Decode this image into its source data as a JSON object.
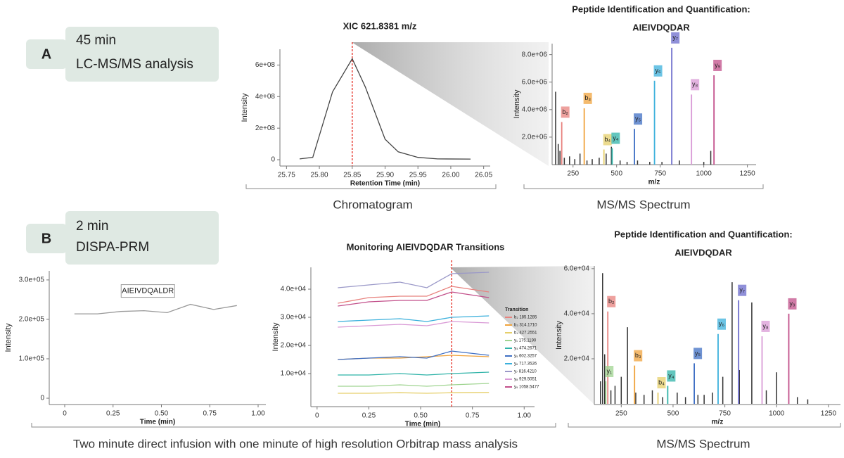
{
  "panels": [
    {
      "label": "A",
      "box": [
        "45 min",
        "LC-MS/MS analysis"
      ]
    },
    {
      "label": "B",
      "box": [
        "2 min",
        "DISPA-PRM"
      ]
    }
  ],
  "captions": [
    "Chromatogram",
    "MS/MS Spectrum",
    "Two minute direct infusion with one minute of high resolution Orbitrap mass analysis",
    "MS/MS Spectrum"
  ],
  "chart_data": [
    {
      "type": "line",
      "title": "XIC 621.8381 m/z",
      "x_label": "Retention Time (min)",
      "y_label": "Intensity",
      "color": "#444444",
      "x": [
        25.77,
        25.79,
        25.82,
        25.85,
        25.87,
        25.9,
        25.92,
        25.95,
        25.98,
        26.03
      ],
      "values": [
        5000000,
        15000000,
        430000000,
        640000000,
        460000000,
        130000000,
        50000000,
        15000000,
        5000000,
        4000000
      ],
      "marker_x": 25.85,
      "marker_color": "#e8453c",
      "xlim": [
        25.74,
        26.06
      ],
      "ylim": [
        -40000000,
        700000000
      ],
      "xticks": [
        25.75,
        {
          "value": 25.8,
          "label": "25.80"
        },
        25.85,
        {
          "value": 25.9,
          "label": "25.90"
        },
        25.95,
        {
          "value": 26.0,
          "label": "26.00"
        },
        26.05
      ],
      "yticks": [
        0,
        {
          "value": 200000000,
          "label": "2e+08"
        },
        {
          "value": 400000000,
          "label": "4e+08"
        },
        {
          "value": 600000000,
          "label": "6e+08"
        }
      ]
    },
    {
      "type": "spectrum",
      "title": "Peptide Identification and Quantification:",
      "subtitle": "AIEIVDQDAR",
      "x_label": "m/z",
      "y_label": "Intensity",
      "color": "#333333",
      "peaks": {
        "labels": [
          "b₂",
          "b₃",
          "b₄",
          "y₄",
          "y₅",
          "y₆",
          "y₇",
          "y₈",
          "y₉"
        ],
        "x": [
          185.1285,
          314.171,
          427.2551,
          474.2671,
          602.3257,
          717.3526,
          816.421,
          929.5051,
          1058.5477
        ],
        "values": [
          3100000,
          4100000,
          1100000,
          1200000,
          2600000,
          6100000,
          8500000,
          5100000,
          6500000
        ],
        "colors": [
          "#e8827e",
          "#f0a33c",
          "#e6cf6a",
          "#2fb3a8",
          "#3f6fc4",
          "#3bb0dc",
          "#6b6bcc",
          "#d99ad6",
          "#c24f8a"
        ]
      },
      "other_peaks": {
        "x": [
          150,
          165,
          175,
          200,
          230,
          260,
          290,
          330,
          360,
          400,
          440,
          470,
          520,
          560,
          620,
          690,
          760,
          860,
          1000,
          1040
        ],
        "values": [
          5300000,
          1500000,
          1000000,
          500000,
          600000,
          400000,
          800000,
          300000,
          400000,
          500000,
          800000,
          1300000,
          300000,
          200000,
          300000,
          200000,
          200000,
          300000,
          200000,
          1000000
        ]
      },
      "xlim": [
        130,
        1300
      ],
      "ylim": [
        0,
        8800000
      ],
      "xticks": [
        250,
        500,
        750,
        1000,
        1250
      ],
      "yticks": [
        {
          "value": 2000000,
          "label": "2.0e+06"
        },
        {
          "value": 4000000,
          "label": "4.0e+06"
        },
        {
          "value": 6000000,
          "label": "6.0e+06"
        },
        {
          "value": 8000000,
          "label": "8.0e+06"
        }
      ]
    },
    {
      "type": "line",
      "x_label": "Time (min)",
      "y_label": "Intensity",
      "color": "#999999",
      "annotation": "AIEIVDQALDR",
      "x": [
        0.05,
        0.17,
        0.29,
        0.41,
        0.53,
        0.65,
        0.77,
        0.89
      ],
      "values": [
        214000,
        214000,
        220000,
        222000,
        217000,
        238000,
        225000,
        235000
      ],
      "xlim": [
        -0.08,
        1.04
      ],
      "ylim": [
        -16000,
        323000
      ],
      "xticks": [
        0,
        0.25,
        {
          "value": 0.5,
          "label": "0.50"
        },
        0.75,
        {
          "value": 1,
          "label": "1.00"
        }
      ],
      "yticks": [
        0,
        {
          "value": 100000,
          "label": "1.0e+05"
        },
        {
          "value": 200000,
          "label": "2.0e+05"
        },
        {
          "value": 300000,
          "label": "3.0e+05"
        }
      ]
    },
    {
      "type": "line",
      "title": "Monitoring AIEIVDQDAR Transitions",
      "x_label": "Time (min)",
      "y_label": "Intensity",
      "legend_title": "Transition",
      "marker_x": 0.65,
      "marker_color": "#e8453c",
      "x": [
        0.1,
        0.25,
        0.4,
        0.53,
        0.65,
        0.83
      ],
      "series": [
        {
          "name": "b₂ 185.1285",
          "color": "#e8827e",
          "values": [
            35000,
            37000,
            37500,
            37500,
            41000,
            39000
          ]
        },
        {
          "name": "b₃ 314.1710",
          "color": "#f0a33c",
          "values": [
            15000,
            15500,
            15500,
            16000,
            16500,
            16000
          ]
        },
        {
          "name": "b₄ 427.2551",
          "color": "#e6cf6a",
          "values": [
            3000,
            3000,
            3200,
            3000,
            3200,
            3300
          ]
        },
        {
          "name": "y₁ 175.1190",
          "color": "#9fd490",
          "values": [
            5500,
            5500,
            6000,
            5500,
            6000,
            6500
          ]
        },
        {
          "name": "y₄ 474.2671",
          "color": "#2fb3a8",
          "values": [
            9500,
            9500,
            10000,
            9500,
            10000,
            10500
          ]
        },
        {
          "name": "y₅ 602.3257",
          "color": "#3f6fc4",
          "values": [
            15000,
            15500,
            16000,
            15500,
            18000,
            16500
          ]
        },
        {
          "name": "y₆ 717.3526",
          "color": "#3bb0dc",
          "values": [
            28500,
            29000,
            29500,
            28500,
            30000,
            30500
          ]
        },
        {
          "name": "y₇ 816.4210",
          "color": "#9a98c8",
          "values": [
            40500,
            41500,
            42500,
            40500,
            45500,
            46000
          ]
        },
        {
          "name": "y₈ 929.5051",
          "color": "#d99ad6",
          "values": [
            26500,
            27000,
            27500,
            27000,
            28500,
            28000
          ]
        },
        {
          "name": "y₉ 1058.5477",
          "color": "#c24f8a",
          "values": [
            34000,
            35500,
            36000,
            36000,
            39000,
            37000
          ]
        }
      ],
      "xlim": [
        -0.03,
        1.05
      ],
      "ylim": [
        -1750,
        47750
      ],
      "xticks": [
        0,
        0.25,
        {
          "value": 0.5,
          "label": "0.50"
        },
        0.75,
        {
          "value": 1,
          "label": "1.00"
        }
      ],
      "yticks": [
        {
          "value": 10000,
          "label": "1.0e+04"
        },
        {
          "value": 20000,
          "label": "2.0e+04"
        },
        {
          "value": 30000,
          "label": "3.0e+04"
        },
        {
          "value": 40000,
          "label": "4.0e+04"
        }
      ]
    },
    {
      "type": "spectrum",
      "title": "Peptide Identification and Quantification:",
      "subtitle": "AIEIVDQDAR",
      "x_label": "m/z",
      "y_label": "Intensity",
      "color": "#333333",
      "peaks": {
        "labels": [
          "b₂",
          "b₃",
          "b₄",
          "y₁",
          "y₄",
          "y₅",
          "y₆",
          "y₇",
          "y₈",
          "y₉"
        ],
        "x": [
          185.1285,
          314.171,
          427.2551,
          175.119,
          474.2671,
          602.3257,
          717.3526,
          816.421,
          929.5051,
          1058.5477
        ],
        "values": [
          41000,
          17000,
          5000,
          10000,
          8000,
          18000,
          31000,
          46000,
          30000,
          40000
        ],
        "colors": [
          "#e8827e",
          "#f0a33c",
          "#e6cf6a",
          "#9fd490",
          "#2fb3a8",
          "#3f6fc4",
          "#3bb0dc",
          "#6b6bcc",
          "#d99ad6",
          "#c24f8a"
        ]
      },
      "other_peaks": {
        "x": [
          150,
          160,
          170,
          200,
          220,
          250,
          280,
          320,
          360,
          400,
          450,
          520,
          560,
          620,
          650,
          690,
          740,
          785,
          820,
          880,
          950,
          1000,
          1100,
          1150
        ],
        "values": [
          10000,
          58000,
          22000,
          6000,
          8000,
          12000,
          34000,
          5000,
          4000,
          6000,
          3000,
          5000,
          3000,
          4000,
          4000,
          5000,
          12000,
          54000,
          15000,
          45000,
          6000,
          14000,
          3000,
          2000
        ]
      },
      "xlim": [
        120,
        1308
      ],
      "ylim": [
        -300,
        61200
      ],
      "xticks": [
        250,
        500,
        750,
        1000,
        1250
      ],
      "yticks": [
        {
          "value": 20000,
          "label": "2.0e+04"
        },
        {
          "value": 40000,
          "label": "4.0e+04"
        },
        {
          "value": 60000,
          "label": "6.0e+04"
        }
      ]
    }
  ]
}
